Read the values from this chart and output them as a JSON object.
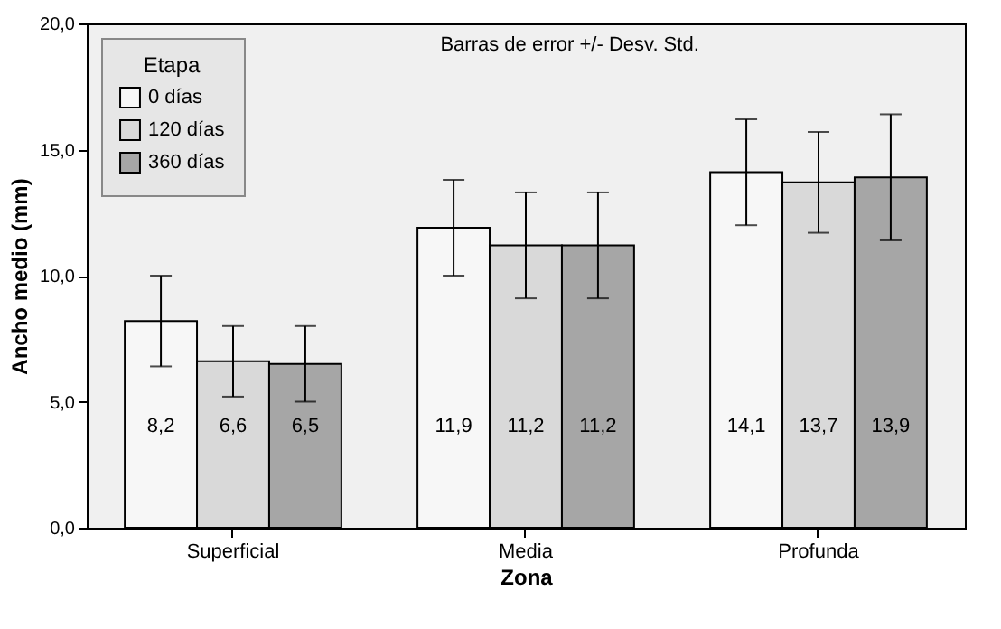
{
  "chart_data": {
    "type": "bar",
    "xlabel": "Zona",
    "ylabel": "Ancho medio (mm)",
    "legend_title": "Etapa",
    "legend": "top left",
    "annotations": [
      "Barras de error +/- Desv. Std."
    ],
    "categories": [
      "Superficial",
      "Media",
      "Profunda"
    ],
    "ylim": [
      0,
      20
    ],
    "yticks": [
      {
        "value": 0,
        "label": "0,0"
      },
      {
        "value": 5,
        "label": "5,0"
      },
      {
        "value": 10,
        "label": "10,0"
      },
      {
        "value": 15,
        "label": "15,0"
      },
      {
        "value": 20,
        "label": "20,0"
      }
    ],
    "series": [
      {
        "name": "0 días",
        "color": "#f7f7f7",
        "values": [
          8.2,
          11.9,
          14.1
        ],
        "errors": [
          1.8,
          1.9,
          2.1
        ],
        "value_labels": [
          "8,2",
          "11,9",
          "14,1"
        ]
      },
      {
        "name": "120 días",
        "color": "#d9d9d9",
        "values": [
          6.6,
          11.2,
          13.7
        ],
        "errors": [
          1.4,
          2.1,
          2.0
        ],
        "value_labels": [
          "6,6",
          "11,2",
          "13,7"
        ]
      },
      {
        "name": "360 días",
        "color": "#a6a6a6",
        "values": [
          6.5,
          11.2,
          13.9
        ],
        "errors": [
          1.5,
          2.1,
          2.5
        ],
        "value_labels": [
          "6,5",
          "11,2",
          "13,9"
        ]
      }
    ]
  }
}
